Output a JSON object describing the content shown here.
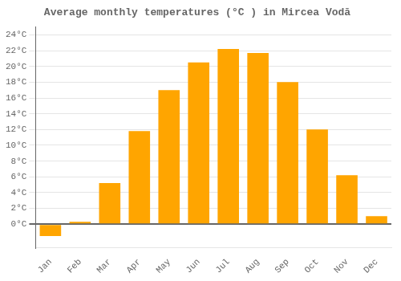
{
  "chart_data": {
    "type": "bar",
    "title": "Average monthly temperatures (°C ) in Mircea Vodă",
    "categories": [
      "Jan",
      "Feb",
      "Mar",
      "Apr",
      "May",
      "Jun",
      "Jul",
      "Aug",
      "Sep",
      "Oct",
      "Nov",
      "Dec"
    ],
    "values": [
      -1.5,
      0.3,
      5.2,
      11.8,
      17.0,
      20.5,
      22.2,
      21.7,
      18.0,
      12.0,
      6.2,
      1.0
    ],
    "color": "#FFA500",
    "ylim": [
      -3,
      25
    ],
    "yticks": [
      {
        "value": 0,
        "label": "0°C"
      },
      {
        "value": 2,
        "label": "2°C"
      },
      {
        "value": 4,
        "label": "4°C"
      },
      {
        "value": 6,
        "label": "6°C"
      },
      {
        "value": 8,
        "label": "8°C"
      },
      {
        "value": 10,
        "label": "10°C"
      },
      {
        "value": 12,
        "label": "12°C"
      },
      {
        "value": 14,
        "label": "14°C"
      },
      {
        "value": 16,
        "label": "16°C"
      },
      {
        "value": 18,
        "label": "18°C"
      },
      {
        "value": 20,
        "label": "20°C"
      },
      {
        "value": 22,
        "label": "22°C"
      },
      {
        "value": 24,
        "label": "24°C"
      }
    ],
    "grid": true
  }
}
